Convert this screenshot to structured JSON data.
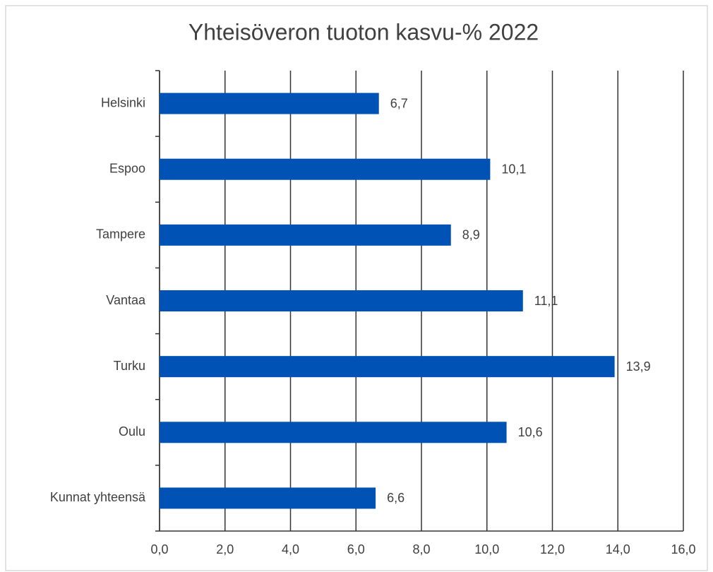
{
  "chart_data": {
    "type": "bar",
    "orientation": "horizontal",
    "title": "Yhteisöveron tuoton kasvu-% 2022",
    "categories": [
      "Helsinki",
      "Espoo",
      "Tampere",
      "Vantaa",
      "Turku",
      "Oulu",
      "Kunnat yhteensä"
    ],
    "values": [
      6.7,
      10.1,
      8.9,
      11.1,
      13.9,
      10.6,
      6.6
    ],
    "value_labels": [
      "6,7",
      "10,1",
      "8,9",
      "11,1",
      "13,9",
      "10,6",
      "6,6"
    ],
    "color": "#0052b4",
    "xlim": [
      0,
      16
    ],
    "xticks": [
      {
        "value": 0,
        "label": "0,0"
      },
      {
        "value": 2,
        "label": "2,0"
      },
      {
        "value": 4,
        "label": "4,0"
      },
      {
        "value": 6,
        "label": "6,0"
      },
      {
        "value": 8,
        "label": "8,0"
      },
      {
        "value": 10,
        "label": "10,0"
      },
      {
        "value": 12,
        "label": "12,0"
      },
      {
        "value": 14,
        "label": "14,0"
      },
      {
        "value": 16,
        "label": "16,0"
      }
    ],
    "grid": true
  }
}
